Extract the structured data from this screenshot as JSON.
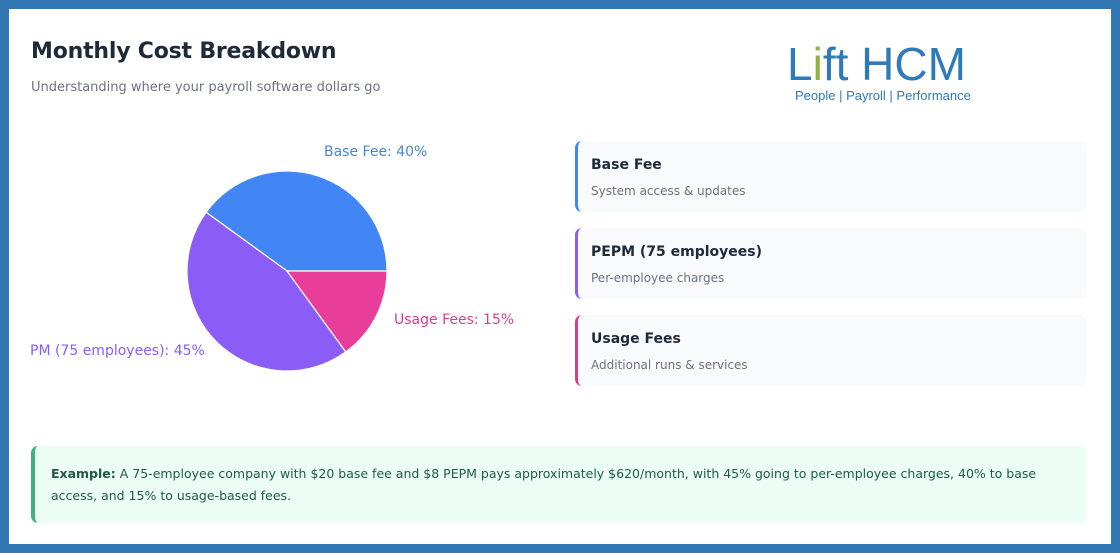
{
  "header": {
    "title": "Monthly Cost Breakdown",
    "subtitle": "Understanding where your payroll software dollars go"
  },
  "logo": {
    "word_left": "L",
    "word_i": "i",
    "word_right": "ft HCM",
    "tagline": "People | Payroll | Performance",
    "primary_color": "#2f7ab9",
    "accent_color": "#8fb339"
  },
  "chart_data": {
    "type": "pie",
    "title": "Monthly Cost Breakdown",
    "categories": [
      "Base Fee",
      "PM (75 employees)",
      "Usage Fees"
    ],
    "values": [
      40,
      45,
      15
    ],
    "unit": "%",
    "colors": [
      "#4285f4",
      "#8b5cf6",
      "#e83e9a"
    ],
    "labels": [
      "Base Fee: 40%",
      "PM (75 employees): 45%",
      "Usage Fees: 15%"
    ],
    "start_angle_deg": 0,
    "direction": "counterclockwise",
    "legend_position": "right"
  },
  "legend": {
    "items": [
      {
        "name": "Base Fee",
        "desc": "System access & updates",
        "color": "#4285f4"
      },
      {
        "name": "PEPM (75 employees)",
        "desc": "Per-employee charges",
        "color": "#8b5cf6"
      },
      {
        "name": "Usage Fees",
        "desc": "Additional runs & services",
        "color": "#d63d91"
      }
    ]
  },
  "note": {
    "label": "Example:",
    "text": " A 75-employee company with $20 base fee and $8 PEPM pays approximately $620/month, with 45% going to per-employee charges, 40% to base access, and 15% to usage-based fees."
  }
}
